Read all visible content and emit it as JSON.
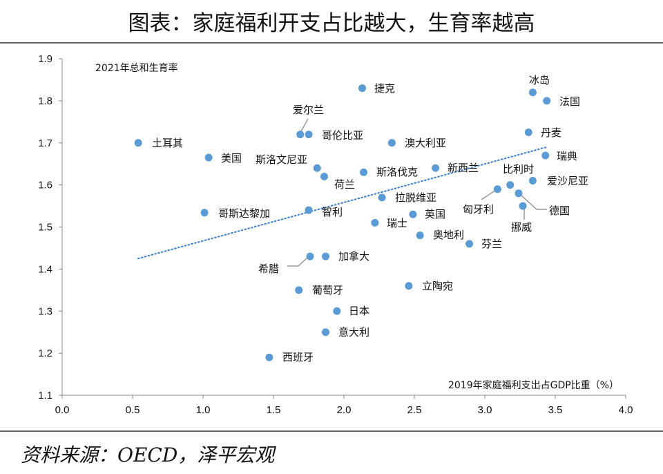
{
  "title": "图表：家庭福利开支占比越大，生育率越高",
  "source": "资料来源：OECD，泽平宏观",
  "chart_data": {
    "type": "scatter",
    "title": "图表：家庭福利开支占比越大，生育率越高",
    "xlabel": "2019年家庭福利支出占GDP比重（%）",
    "ylabel": "2021年总和生育率",
    "xlim": [
      0,
      4
    ],
    "ylim": [
      1.1,
      1.9
    ],
    "xticks": [
      "0.0",
      "0.5",
      "1.0",
      "1.5",
      "2.0",
      "2.5",
      "3.0",
      "3.5",
      "4.0"
    ],
    "yticks": [
      "1.1",
      "1.2",
      "1.3",
      "1.4",
      "1.5",
      "1.6",
      "1.7",
      "1.8",
      "1.9"
    ],
    "grid": false,
    "point_color": "#5b9bd5",
    "trendline": {
      "style": "dotted",
      "color": "#4a86d0",
      "x": [
        0.54,
        3.44
      ],
      "y": [
        1.425,
        1.69
      ]
    },
    "points": [
      {
        "label": "土耳其",
        "x": 0.54,
        "y": 1.7
      },
      {
        "label": "美国",
        "x": 1.04,
        "y": 1.665
      },
      {
        "label": "哥斯达黎加",
        "x": 1.01,
        "y": 1.534
      },
      {
        "label": "冰岛",
        "x": 3.34,
        "y": 1.82
      },
      {
        "label": "法国",
        "x": 3.44,
        "y": 1.8
      },
      {
        "label": "捷克",
        "x": 2.13,
        "y": 1.83
      },
      {
        "label": "爱尔兰",
        "x": 1.69,
        "y": 1.72
      },
      {
        "label": "哥伦比亚",
        "x": 1.75,
        "y": 1.72
      },
      {
        "label": "澳大利亚",
        "x": 2.34,
        "y": 1.7
      },
      {
        "label": "丹麦",
        "x": 3.31,
        "y": 1.725
      },
      {
        "label": "瑞典",
        "x": 3.43,
        "y": 1.67
      },
      {
        "label": "斯洛文尼亚",
        "x": 1.81,
        "y": 1.64
      },
      {
        "label": "荷兰",
        "x": 1.86,
        "y": 1.62
      },
      {
        "label": "斯洛伐克",
        "x": 2.14,
        "y": 1.63
      },
      {
        "label": "新西兰",
        "x": 2.65,
        "y": 1.64
      },
      {
        "label": "比利时",
        "x": 3.18,
        "y": 1.6
      },
      {
        "label": "爱沙尼亚",
        "x": 3.34,
        "y": 1.61
      },
      {
        "label": "匈牙利",
        "x": 3.09,
        "y": 1.59
      },
      {
        "label": "德国",
        "x": 3.24,
        "y": 1.58
      },
      {
        "label": "挪威",
        "x": 3.27,
        "y": 1.55
      },
      {
        "label": "拉脱维亚",
        "x": 2.27,
        "y": 1.57
      },
      {
        "label": "智利",
        "x": 1.75,
        "y": 1.54
      },
      {
        "label": "英国",
        "x": 2.49,
        "y": 1.53
      },
      {
        "label": "瑞士",
        "x": 2.22,
        "y": 1.51
      },
      {
        "label": "奥地利",
        "x": 2.54,
        "y": 1.48
      },
      {
        "label": "芬兰",
        "x": 2.89,
        "y": 1.46
      },
      {
        "label": "希腊",
        "x": 1.76,
        "y": 1.43
      },
      {
        "label": "加拿大",
        "x": 1.87,
        "y": 1.43
      },
      {
        "label": "葡萄牙",
        "x": 1.68,
        "y": 1.35
      },
      {
        "label": "立陶宛",
        "x": 2.46,
        "y": 1.36
      },
      {
        "label": "日本",
        "x": 1.95,
        "y": 1.3
      },
      {
        "label": "意大利",
        "x": 1.87,
        "y": 1.25
      },
      {
        "label": "西班牙",
        "x": 1.47,
        "y": 1.19
      }
    ]
  }
}
